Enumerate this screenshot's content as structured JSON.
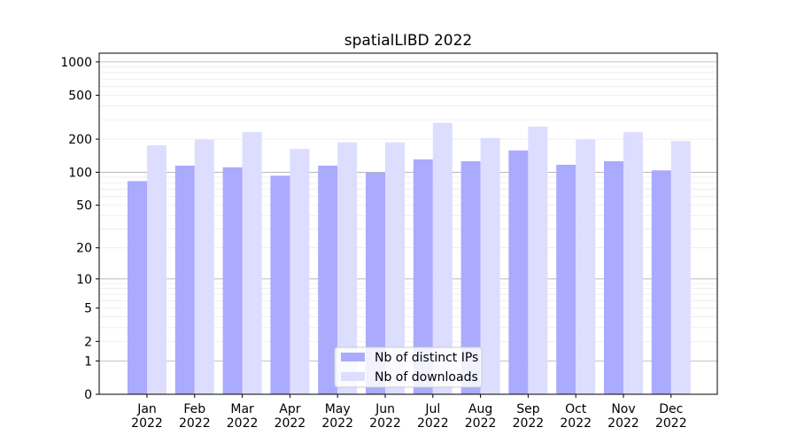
{
  "chart_data": {
    "type": "bar",
    "title": "spatialLIBD 2022",
    "xlabel": "",
    "ylabel": "",
    "yscale": "log(1+y)",
    "ylim": [
      0,
      1200
    ],
    "y_ticks": [
      0,
      1,
      2,
      5,
      10,
      20,
      50,
      100,
      200,
      500,
      1000
    ],
    "y_tick_labels": [
      "0",
      "1",
      "2",
      "5",
      "10",
      "20",
      "50",
      "100",
      "200",
      "500",
      "1000"
    ],
    "categories": [
      "Jan\n2022",
      "Feb\n2022",
      "Mar\n2022",
      "Apr\n2022",
      "May\n2022",
      "Jun\n2022",
      "Jul\n2022",
      "Aug\n2022",
      "Sep\n2022",
      "Oct\n2022",
      "Nov\n2022",
      "Dec\n2022"
    ],
    "series": [
      {
        "name": "Nb of distinct IPs",
        "color": "#aaaaff",
        "values": [
          83,
          115,
          111,
          93,
          115,
          99,
          131,
          126,
          158,
          117,
          126,
          104
        ]
      },
      {
        "name": "Nb of downloads",
        "color": "#ddddff",
        "values": [
          176,
          198,
          232,
          163,
          187,
          187,
          281,
          205,
          260,
          198,
          232,
          192
        ]
      }
    ],
    "grid": true,
    "legend_position": "bottom-center"
  }
}
